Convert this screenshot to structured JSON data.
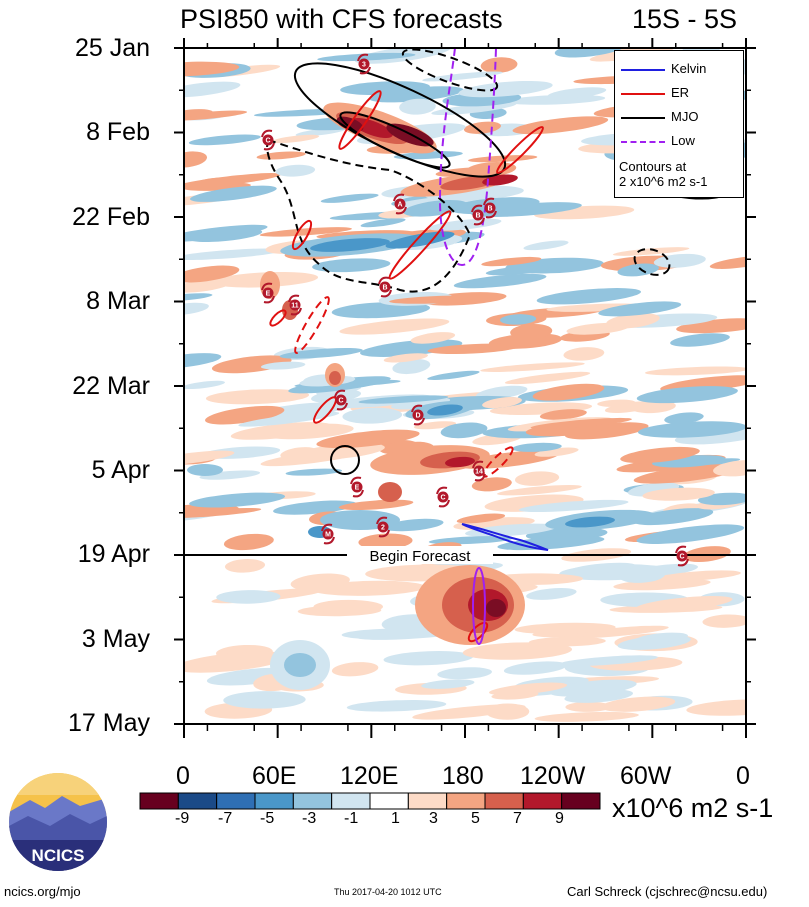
{
  "header": {
    "title": "PSI850 with CFS forecasts",
    "region": "15S - 5S"
  },
  "chart_data": {
    "type": "heatmap",
    "title": "PSI850 with CFS forecasts",
    "subtitle": "15S - 5S",
    "y_axis": {
      "labels": [
        "25 Jan",
        "8 Feb",
        "22 Feb",
        "8 Mar",
        "22 Mar",
        "5 Apr",
        "19 Apr",
        "3 May",
        "17 May"
      ],
      "range": [
        "2017-01-25",
        "2017-05-17"
      ]
    },
    "x_axis": {
      "labels": [
        "0",
        "60E",
        "120E",
        "180",
        "120W",
        "60W",
        "0"
      ],
      "range_deg": [
        0,
        360
      ]
    },
    "colorbar": {
      "units": "x10^6 m2 s-1",
      "tick_labels": [
        "-9",
        "-7",
        "-5",
        "-3",
        "-1",
        "1",
        "3",
        "5",
        "7",
        "9"
      ],
      "colors": [
        "#67001f",
        "#1b4a87",
        "#2f6fb4",
        "#4a97c9",
        "#93c4de",
        "#d1e5f0",
        "#ffffff",
        "#fddbc7",
        "#f4a582",
        "#d6604d",
        "#b2182b",
        "#67001f"
      ]
    },
    "legend": {
      "placement": "top-right",
      "entries": [
        {
          "label": "Kelvin",
          "color": "#1f1fe0"
        },
        {
          "label": "ER",
          "color": "#e01010"
        },
        {
          "label": "MJO",
          "color": "#000000"
        },
        {
          "label": "Low",
          "color": "#a020f0"
        }
      ],
      "note_line1": "Contours at",
      "note_line2": "2 x10^6 m2 s-1"
    },
    "annotations": {
      "forecast_line_label": "Begin Forecast",
      "forecast_start": "19 Apr"
    },
    "storm_markers": [
      "3",
      "C",
      "A",
      "B",
      "B",
      "E",
      "11",
      "B",
      "C",
      "D",
      "E",
      "14",
      "C",
      "2",
      "M",
      "C"
    ]
  },
  "footer": {
    "logo_text": "NCICS",
    "site": "ncics.org/mjo",
    "timestamp": "Thu 2017-04-20 1012 UTC",
    "author": "Carl Schreck (cjschrec@ncsu.edu)"
  }
}
